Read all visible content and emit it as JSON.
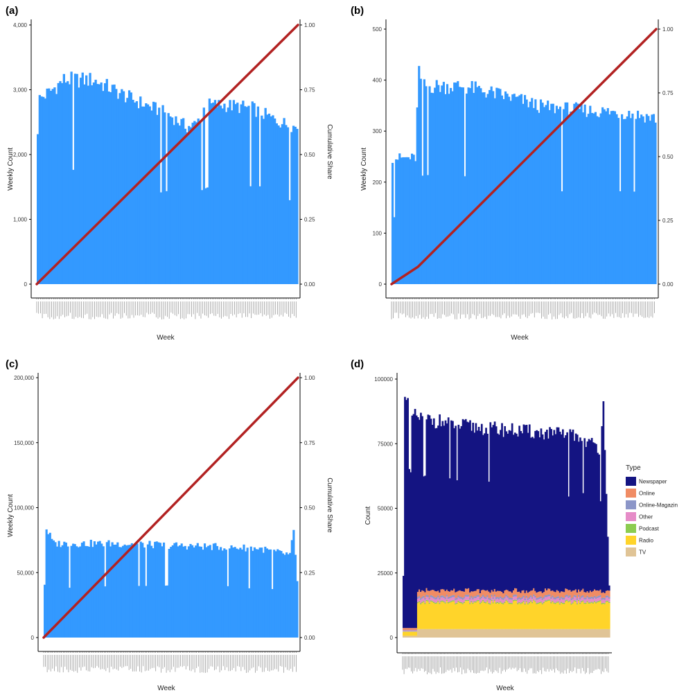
{
  "chart_data": [
    {
      "panel": "(a)",
      "type": "bar",
      "xlabel": "Week",
      "ylabel": "Weekly Count",
      "y2label": "Cumulative Share",
      "ylim": [
        0,
        4000
      ],
      "y_ticks": [
        "0",
        "1,000",
        "2,000",
        "3,000",
        "4,000"
      ],
      "y2lim": [
        0,
        1
      ],
      "y2_ticks": [
        "0.00",
        "0.25",
        "0.50",
        "0.75",
        "1.00"
      ],
      "bar_color": "#3399ff",
      "line_color": "#b22222",
      "bar_profile": [
        [
          0,
          2450
        ],
        [
          1,
          2950
        ],
        [
          6,
          3050
        ],
        [
          14,
          3250
        ],
        [
          30,
          3250
        ],
        [
          50,
          2950
        ],
        [
          70,
          2700
        ],
        [
          80,
          2500
        ],
        [
          85,
          2550
        ],
        [
          90,
          2850
        ],
        [
          100,
          2850
        ],
        [
          115,
          2800
        ],
        [
          128,
          2600
        ],
        [
          138,
          2500
        ]
      ],
      "n_bars": 140,
      "cumulative_line": [
        [
          0,
          0
        ],
        [
          1,
          1
        ]
      ]
    },
    {
      "panel": "(b)",
      "type": "bar",
      "xlabel": "Week",
      "ylabel": "Weekly Count",
      "y2label": "Cumulative Share",
      "ylim": [
        0,
        500
      ],
      "y_ticks": [
        "0",
        "100",
        "200",
        "300",
        "400",
        "500"
      ],
      "y2lim": [
        0,
        1
      ],
      "y2_ticks": [
        "0.00",
        "0.25",
        "0.50",
        "0.75",
        "1.00"
      ],
      "bar_color": "#3399ff",
      "line_color": "#b22222",
      "bar_profile": [
        [
          0,
          255
        ],
        [
          13,
          255
        ],
        [
          14,
          350
        ],
        [
          15,
          435
        ],
        [
          16,
          400
        ],
        [
          40,
          400
        ],
        [
          70,
          375
        ],
        [
          85,
          358
        ],
        [
          115,
          350
        ],
        [
          135,
          345
        ],
        [
          150,
          335
        ]
      ],
      "n_bars": 150,
      "cumulative_line": [
        [
          0,
          0
        ],
        [
          0.1,
          0.068
        ],
        [
          1,
          1
        ]
      ]
    },
    {
      "panel": "(c)",
      "type": "bar",
      "xlabel": "Week",
      "ylabel": "Weekly Count",
      "y2label": "Cumulative Share",
      "ylim": [
        0,
        220000
      ],
      "y_ticks": [
        "0",
        "50,000",
        "100,000",
        "150,000",
        "200,000"
      ],
      "y2lim": [
        0,
        1
      ],
      "y2_ticks": [
        "0.00",
        "0.25",
        "0.50",
        "0.75",
        "1.00"
      ],
      "bar_color": "#3399ff",
      "line_color": "#b22222",
      "bar_profile": [
        [
          0,
          47000
        ],
        [
          1,
          95000
        ],
        [
          5,
          82000
        ],
        [
          40,
          82000
        ],
        [
          80,
          80000
        ],
        [
          120,
          78000
        ],
        [
          138,
          72000
        ],
        [
          140,
          92000
        ],
        [
          142,
          50000
        ]
      ],
      "n_bars": 143,
      "cumulative_line": [
        [
          0,
          0
        ],
        [
          1,
          1
        ]
      ]
    },
    {
      "panel": "(d)",
      "type": "area",
      "xlabel": "Week",
      "ylabel": "Count",
      "ylim": [
        0,
        100000
      ],
      "y_ticks": [
        "0",
        "25000",
        "50000",
        "75000",
        "100000"
      ],
      "legend_title": "Type",
      "legend_placement": "right",
      "series": [
        {
          "name": "Newspaper",
          "color": "#141482"
        },
        {
          "name": "Online",
          "color": "#f08c64"
        },
        {
          "name": "Online-Magazin",
          "color": "#8c96c8"
        },
        {
          "name": "Other",
          "color": "#e68cc8"
        },
        {
          "name": "Podcast",
          "color": "#8ccc50"
        },
        {
          "name": "Radio",
          "color": "#ffd42a"
        },
        {
          "name": "TV",
          "color": "#e0c496"
        }
      ],
      "total_profile": [
        [
          0,
          24000
        ],
        [
          1,
          99000
        ],
        [
          5,
          88000
        ],
        [
          40,
          84000
        ],
        [
          80,
          82000
        ],
        [
          120,
          80000
        ],
        [
          136,
          75000
        ],
        [
          138,
          96000
        ],
        [
          142,
          20000
        ]
      ],
      "n_bars": 143
    }
  ]
}
